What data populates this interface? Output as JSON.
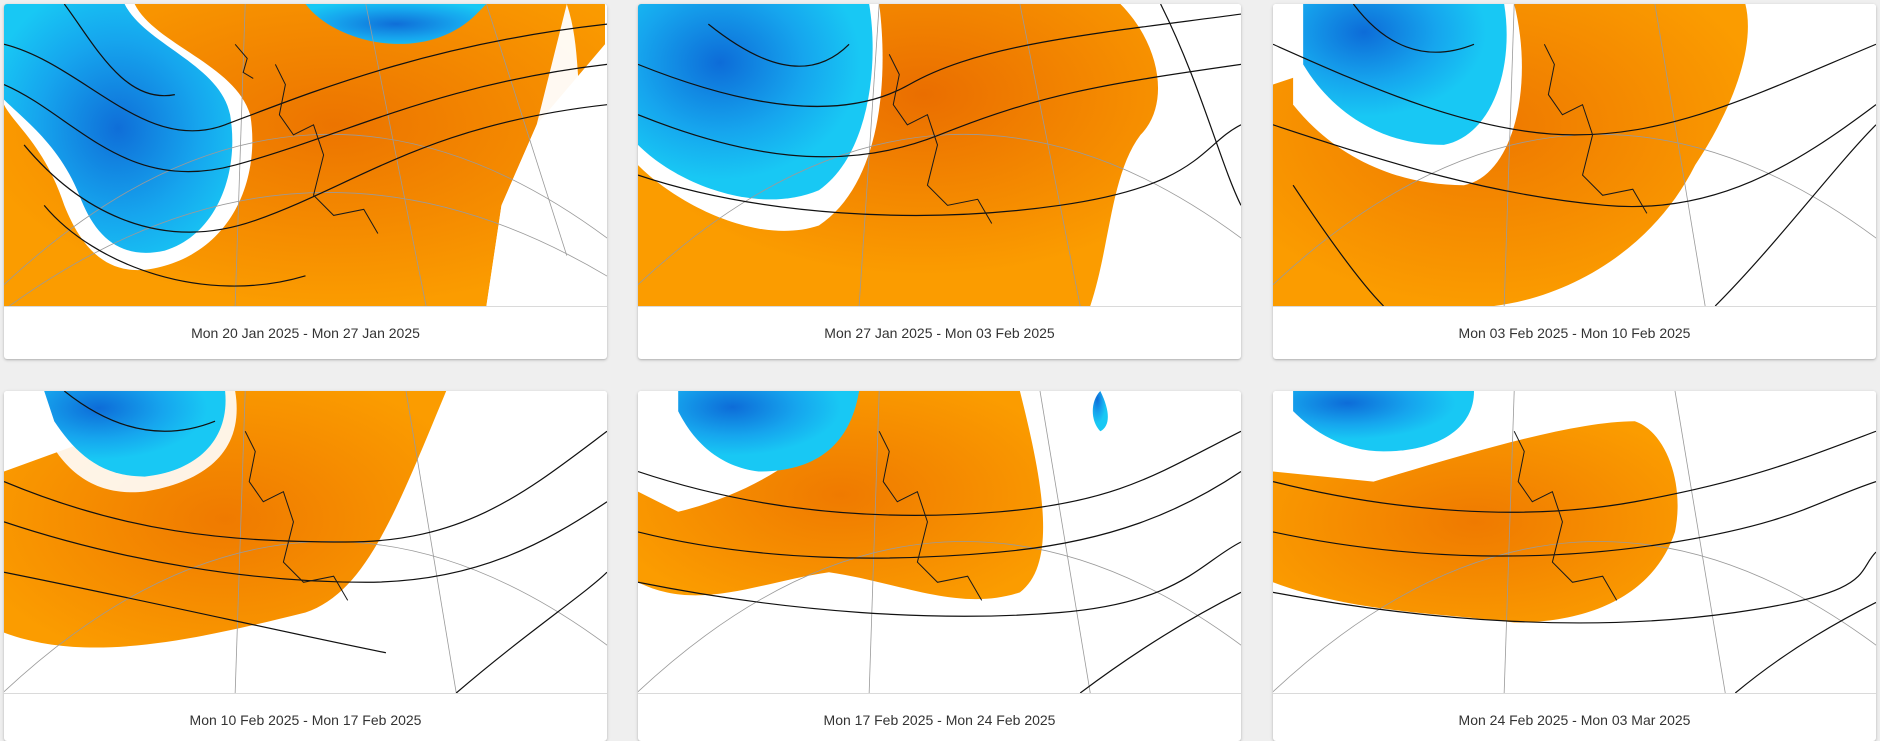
{
  "colors": {
    "warm_anomaly": "#fb9c00",
    "warm_core": "#f07c00",
    "cold_anomaly": "#16c4f2",
    "cold_core": "#1181e6",
    "isobar": "#111111",
    "graticule": "#9a9a9a",
    "coastline": "#1a1a1a"
  },
  "cards": [
    {
      "caption": "Mon 20 Jan 2025 - Mon 27 Jan 2025",
      "map_icon": "anomaly-map"
    },
    {
      "caption": "Mon 27 Jan 2025 - Mon 03 Feb 2025",
      "map_icon": "anomaly-map"
    },
    {
      "caption": "Mon 03 Feb 2025 - Mon 10 Feb 2025",
      "map_icon": "anomaly-map"
    },
    {
      "caption": "Mon 10 Feb 2025 - Mon 17 Feb 2025",
      "map_icon": "anomaly-map"
    },
    {
      "caption": "Mon 17 Feb 2025 - Mon 24 Feb 2025",
      "map_icon": "anomaly-map"
    },
    {
      "caption": "Mon 24 Feb 2025 - Mon 03 Mar 2025",
      "map_icon": "anomaly-map"
    }
  ]
}
